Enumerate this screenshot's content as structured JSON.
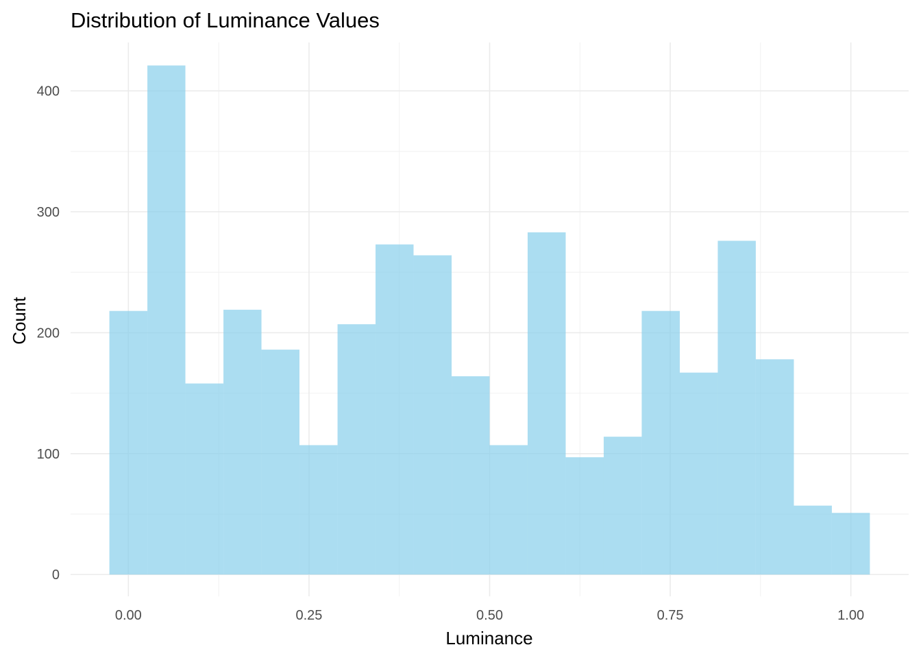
{
  "chart_data": {
    "type": "bar",
    "title": "Distribution of Luminance Values",
    "xlabel": "Luminance",
    "ylabel": "Count",
    "bar_color": "#87CEEB",
    "xlim": [
      -0.08,
      1.08
    ],
    "ylim": [
      -18,
      440
    ],
    "x_ticks": [
      0.0,
      0.25,
      0.5,
      0.75,
      1.0
    ],
    "x_tick_labels": [
      "0.00",
      "0.25",
      "0.50",
      "0.75",
      "1.00"
    ],
    "y_ticks": [
      0,
      100,
      200,
      300,
      400
    ],
    "y_tick_labels": [
      "0",
      "100",
      "200",
      "300",
      "400"
    ],
    "grid": true,
    "bins": [
      {
        "x0": -0.0263,
        "x1": 0.0263,
        "count": 218
      },
      {
        "x0": 0.0263,
        "x1": 0.0789,
        "count": 421
      },
      {
        "x0": 0.0789,
        "x1": 0.1316,
        "count": 158
      },
      {
        "x0": 0.1316,
        "x1": 0.1842,
        "count": 219
      },
      {
        "x0": 0.1842,
        "x1": 0.2368,
        "count": 186
      },
      {
        "x0": 0.2368,
        "x1": 0.2895,
        "count": 107
      },
      {
        "x0": 0.2895,
        "x1": 0.3421,
        "count": 207
      },
      {
        "x0": 0.3421,
        "x1": 0.3947,
        "count": 273
      },
      {
        "x0": 0.3947,
        "x1": 0.4474,
        "count": 264
      },
      {
        "x0": 0.4474,
        "x1": 0.5,
        "count": 164
      },
      {
        "x0": 0.5,
        "x1": 0.5526,
        "count": 107
      },
      {
        "x0": 0.5526,
        "x1": 0.6053,
        "count": 283
      },
      {
        "x0": 0.6053,
        "x1": 0.6579,
        "count": 97
      },
      {
        "x0": 0.6579,
        "x1": 0.7105,
        "count": 114
      },
      {
        "x0": 0.7105,
        "x1": 0.7632,
        "count": 218
      },
      {
        "x0": 0.7632,
        "x1": 0.8158,
        "count": 167
      },
      {
        "x0": 0.8158,
        "x1": 0.8684,
        "count": 276
      },
      {
        "x0": 0.8684,
        "x1": 0.9211,
        "count": 178
      },
      {
        "x0": 0.9211,
        "x1": 0.9737,
        "count": 57
      },
      {
        "x0": 0.9737,
        "x1": 1.0263,
        "count": 51
      }
    ]
  }
}
